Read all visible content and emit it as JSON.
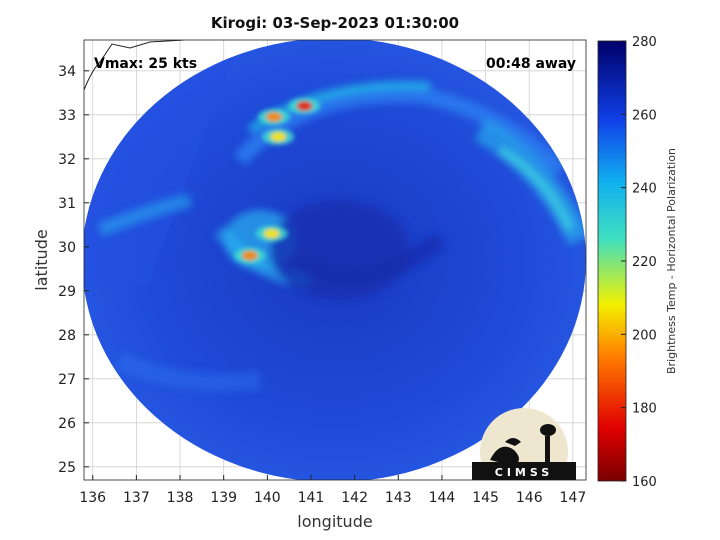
{
  "title": "Kirogi: 03-Sep-2023 01:30:00",
  "annotations": {
    "vmax": "Vmax: 25 kts",
    "time_away": "00:48 away"
  },
  "logo": {
    "text": "CIMSS"
  },
  "axes": {
    "xlabel": "longitude",
    "ylabel": "latitude",
    "xlim": [
      135.8,
      147.3
    ],
    "ylim": [
      24.7,
      34.7
    ],
    "xticks": [
      "136",
      "137",
      "138",
      "139",
      "140",
      "141",
      "142",
      "143",
      "144",
      "145",
      "146",
      "147"
    ],
    "yticks": [
      "25",
      "26",
      "27",
      "28",
      "29",
      "30",
      "31",
      "32",
      "33",
      "34"
    ],
    "grid": true
  },
  "colorbar": {
    "title": "Brightness Temp - Horizontal Polarization",
    "ticks": [
      "280",
      "260",
      "240",
      "220",
      "200",
      "180",
      "160"
    ],
    "range": [
      160,
      280
    ],
    "colormap": "jet"
  },
  "colors": {
    "background_cold": "#1e44d6",
    "cloud_cyan": "#23c8e8",
    "convection_red": "#e02a10",
    "convection_yellow": "#f0e020"
  },
  "swath": {
    "center": [
      141.85,
      29.2
    ],
    "eye": [
      142.0,
      29.65
    ],
    "convective_cells": [
      {
        "lon": 140.85,
        "lat": 33.2,
        "tb": 185
      },
      {
        "lon": 140.15,
        "lat": 32.95,
        "tb": 200
      },
      {
        "lon": 140.25,
        "lat": 32.5,
        "tb": 215
      },
      {
        "lon": 139.6,
        "lat": 29.8,
        "tb": 190
      },
      {
        "lon": 140.1,
        "lat": 30.3,
        "tb": 215
      }
    ]
  }
}
